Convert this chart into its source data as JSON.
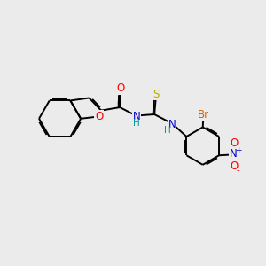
{
  "bg": "#ebebeb",
  "bc": "#000000",
  "bw": 1.4,
  "dbo": 0.055,
  "colors": {
    "O": "#ff0000",
    "N": "#0000cc",
    "S": "#bbaa00",
    "Br": "#cc6600",
    "H_color": "#009999"
  },
  "fs": 8.5,
  "xlim": [
    0,
    10
  ],
  "ylim": [
    0,
    10
  ]
}
